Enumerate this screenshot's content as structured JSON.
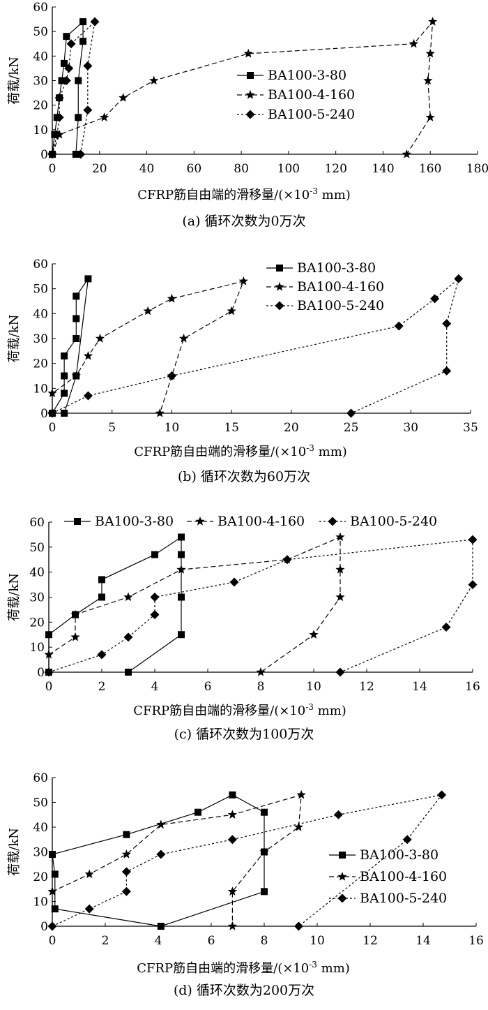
{
  "figure": {
    "x_axis_label_prefix": "CFRP筋自由端的滑移量/(×10",
    "x_axis_label_exp": "-3",
    "x_axis_label_suffix": " mm)"
  },
  "series_styles": [
    {
      "name": "BA100-3-80",
      "marker": "square",
      "dash": "solid"
    },
    {
      "name": "BA100-4-160",
      "marker": "star",
      "dash": "long-dash"
    },
    {
      "name": "BA100-5-240",
      "marker": "diamond",
      "dash": "short-dash"
    }
  ],
  "chart_data": [
    {
      "type": "line",
      "caption": "(a) 循环次数为0万次",
      "ylabel": "荷载/kN",
      "xlim": [
        0,
        180
      ],
      "ylim": [
        0,
        60
      ],
      "xticks": [
        0,
        20,
        40,
        60,
        80,
        100,
        120,
        140,
        160,
        180
      ],
      "yticks": [
        0,
        10,
        20,
        30,
        40,
        50,
        60
      ],
      "legend_placement": "center-right",
      "series": [
        {
          "name": "BA100-3-80",
          "points": [
            [
              0,
              0
            ],
            [
              1,
              8
            ],
            [
              2,
              15
            ],
            [
              3,
              23
            ],
            [
              4,
              30
            ],
            [
              5,
              37
            ],
            [
              6,
              48
            ],
            [
              13,
              54
            ],
            [
              13,
              46
            ],
            [
              11,
              30
            ],
            [
              11,
              15
            ],
            [
              10,
              0
            ]
          ]
        },
        {
          "name": "BA100-4-160",
          "points": [
            [
              0,
              0
            ],
            [
              3,
              8
            ],
            [
              22,
              15
            ],
            [
              30,
              23
            ],
            [
              43,
              30
            ],
            [
              83,
              41
            ],
            [
              153,
              45
            ],
            [
              161,
              54
            ],
            [
              160,
              41
            ],
            [
              159,
              30
            ],
            [
              160,
              15
            ],
            [
              150,
              0
            ]
          ]
        },
        {
          "name": "BA100-5-240",
          "points": [
            [
              0,
              0
            ],
            [
              2,
              8
            ],
            [
              3,
              15
            ],
            [
              3,
              23
            ],
            [
              6,
              30
            ],
            [
              7,
              35
            ],
            [
              8,
              45
            ],
            [
              18,
              54
            ],
            [
              15,
              36
            ],
            [
              15,
              18
            ],
            [
              12,
              0
            ]
          ]
        }
      ]
    },
    {
      "type": "line",
      "caption": "(b) 循环次数为60万次",
      "ylabel": "荷载/kN",
      "xlim": [
        0,
        35
      ],
      "ylim": [
        0,
        60
      ],
      "xticks": [
        0,
        5,
        10,
        15,
        20,
        25,
        30,
        35
      ],
      "yticks": [
        0,
        10,
        20,
        30,
        40,
        50,
        60
      ],
      "legend_placement": "top-right",
      "series": [
        {
          "name": "BA100-3-80",
          "points": [
            [
              0,
              0
            ],
            [
              1,
              8
            ],
            [
              1,
              15
            ],
            [
              1,
              23
            ],
            [
              2,
              30
            ],
            [
              2,
              38
            ],
            [
              2,
              47
            ],
            [
              3,
              54
            ],
            [
              2,
              15
            ],
            [
              1,
              0
            ]
          ]
        },
        {
          "name": "BA100-4-160",
          "points": [
            [
              0,
              0
            ],
            [
              0,
              8
            ],
            [
              2,
              15
            ],
            [
              3,
              23
            ],
            [
              4,
              30
            ],
            [
              8,
              41
            ],
            [
              10,
              46
            ],
            [
              16,
              53
            ],
            [
              15,
              41
            ],
            [
              11,
              30
            ],
            [
              10,
              15
            ],
            [
              9,
              0
            ]
          ]
        },
        {
          "name": "BA100-5-240",
          "points": [
            [
              0,
              0
            ],
            [
              3,
              7
            ],
            [
              10,
              15
            ],
            [
              29,
              35
            ],
            [
              32,
              46
            ],
            [
              34,
              54
            ],
            [
              33,
              36
            ],
            [
              33,
              17
            ],
            [
              25,
              0
            ]
          ]
        }
      ]
    },
    {
      "type": "line",
      "caption": "(c) 循环次数为100万次",
      "ylabel": "荷载/kN",
      "xlim": [
        0,
        16
      ],
      "ylim": [
        0,
        60
      ],
      "xticks": [
        0,
        2,
        4,
        6,
        8,
        10,
        12,
        14,
        16
      ],
      "yticks": [
        0,
        10,
        20,
        30,
        40,
        50,
        60
      ],
      "legend_placement": "top",
      "series": [
        {
          "name": "BA100-3-80",
          "points": [
            [
              0,
              0
            ],
            [
              0,
              15
            ],
            [
              1,
              23
            ],
            [
              2,
              30
            ],
            [
              2,
              37
            ],
            [
              4,
              47
            ],
            [
              5,
              54
            ],
            [
              5,
              47
            ],
            [
              5,
              30
            ],
            [
              5,
              15
            ],
            [
              3,
              0
            ]
          ]
        },
        {
          "name": "BA100-4-160",
          "points": [
            [
              0,
              7
            ],
            [
              1,
              14
            ],
            [
              1,
              23
            ],
            [
              3,
              30
            ],
            [
              5,
              41
            ],
            [
              9,
              45
            ],
            [
              11,
              54
            ],
            [
              11,
              41
            ],
            [
              11,
              30
            ],
            [
              10,
              15
            ],
            [
              8,
              0
            ]
          ]
        },
        {
          "name": "BA100-5-240",
          "points": [
            [
              0,
              0
            ],
            [
              2,
              7
            ],
            [
              3,
              14
            ],
            [
              4,
              23
            ],
            [
              4,
              30
            ],
            [
              7,
              36
            ],
            [
              9,
              45
            ],
            [
              16,
              53
            ],
            [
              16,
              35
            ],
            [
              15,
              18
            ],
            [
              11,
              0
            ]
          ]
        }
      ]
    },
    {
      "type": "line",
      "caption": "(d) 循环次数为200万次",
      "ylabel": "荷载/kN",
      "xlim": [
        0,
        16
      ],
      "ylim": [
        0,
        60
      ],
      "xticks": [
        0,
        2,
        4,
        6,
        8,
        10,
        12,
        14,
        16
      ],
      "yticks": [
        0,
        10,
        20,
        30,
        40,
        50,
        60
      ],
      "legend_placement": "center-right",
      "series": [
        {
          "name": "BA100-3-80",
          "points": [
            [
              0,
              29
            ],
            [
              2.8,
              37
            ],
            [
              5.5,
              46
            ],
            [
              6.8,
              53
            ],
            [
              8,
              46
            ],
            [
              8,
              30
            ],
            [
              8,
              14
            ],
            [
              4.1,
              0
            ],
            [
              0.1,
              7
            ],
            [
              0.1,
              21
            ],
            [
              0,
              29
            ]
          ]
        },
        {
          "name": "BA100-4-160",
          "points": [
            [
              0,
              14
            ],
            [
              1.4,
              21
            ],
            [
              2.8,
              29
            ],
            [
              4.1,
              41
            ],
            [
              6.8,
              45
            ],
            [
              9.4,
              53
            ],
            [
              9.3,
              40
            ],
            [
              8,
              30
            ],
            [
              6.8,
              14
            ],
            [
              6.8,
              0
            ]
          ]
        },
        {
          "name": "BA100-5-240",
          "points": [
            [
              0,
              0
            ],
            [
              1.4,
              7
            ],
            [
              2.8,
              14
            ],
            [
              2.8,
              22
            ],
            [
              4.1,
              29
            ],
            [
              6.8,
              35
            ],
            [
              10.8,
              45
            ],
            [
              14.7,
              53
            ],
            [
              13.4,
              35
            ],
            [
              9.3,
              0
            ]
          ]
        }
      ]
    }
  ]
}
